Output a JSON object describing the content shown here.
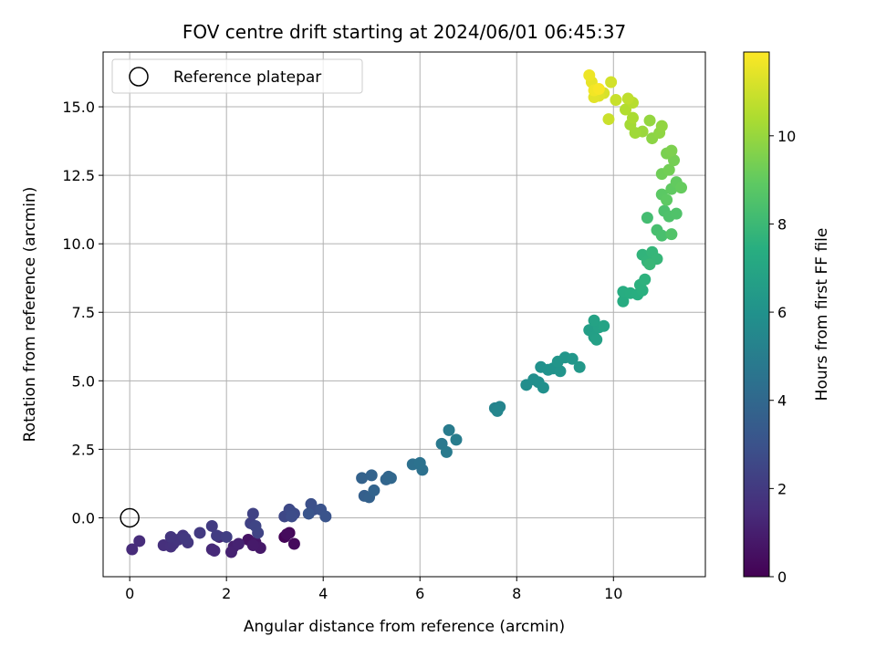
{
  "chart_data": {
    "type": "scatter",
    "title": "FOV centre drift starting at 2024/06/01 06:45:37",
    "xlabel": "Angular distance from reference (arcmin)",
    "ylabel": "Rotation from reference (arcmin)",
    "xlim": [
      -0.55,
      11.9
    ],
    "ylim": [
      -2.15,
      17.0
    ],
    "xticks": [
      0,
      2,
      4,
      6,
      8,
      10
    ],
    "yticks": [
      0.0,
      2.5,
      5.0,
      7.5,
      10.0,
      12.5,
      15.0
    ],
    "grid": true,
    "colormap": "viridis",
    "colorbar": {
      "label": "Hours from first FF file",
      "range": [
        0,
        11.9
      ],
      "ticks": [
        0,
        2,
        4,
        6,
        8,
        10
      ]
    },
    "legend": {
      "placement": "top-left",
      "entries": [
        "Reference platepar"
      ]
    },
    "reference_point": {
      "x": 0,
      "y": 0,
      "marker": "open-circle"
    },
    "series": [
      {
        "points": [
          [
            3.2,
            -0.7,
            0.1
          ],
          [
            3.3,
            -0.55,
            0.2
          ],
          [
            3.4,
            -0.95,
            0.3
          ],
          [
            3.25,
            -0.6,
            0.35
          ],
          [
            2.45,
            -0.8,
            0.6
          ],
          [
            2.6,
            -0.9,
            0.7
          ],
          [
            2.7,
            -1.1,
            0.8
          ],
          [
            2.55,
            -1.0,
            0.85
          ],
          [
            2.15,
            -1.05,
            1.0
          ],
          [
            2.1,
            -1.25,
            1.1
          ],
          [
            2.25,
            -0.95,
            1.15
          ],
          [
            1.85,
            -0.7,
            1.25
          ],
          [
            1.7,
            -1.15,
            1.35
          ],
          [
            1.75,
            -1.2,
            1.4
          ],
          [
            0.05,
            -1.15,
            1.45
          ],
          [
            0.2,
            -0.85,
            1.5
          ],
          [
            0.7,
            -1.0,
            1.6
          ],
          [
            0.85,
            -1.05,
            1.65
          ],
          [
            0.9,
            -0.95,
            1.7
          ],
          [
            1.0,
            -0.8,
            1.75
          ],
          [
            0.85,
            -0.7,
            1.8
          ],
          [
            1.1,
            -0.65,
            1.85
          ],
          [
            1.2,
            -0.9,
            1.9
          ],
          [
            1.15,
            -0.75,
            1.95
          ],
          [
            1.45,
            -0.55,
            2.0
          ],
          [
            1.7,
            -0.3,
            2.05
          ],
          [
            1.8,
            -0.65,
            2.1
          ],
          [
            2.0,
            -0.7,
            2.2
          ],
          [
            2.5,
            -0.2,
            2.3
          ],
          [
            2.55,
            0.15,
            2.35
          ],
          [
            2.65,
            -0.55,
            2.4
          ],
          [
            2.6,
            -0.3,
            2.45
          ],
          [
            3.2,
            0.05,
            2.55
          ],
          [
            3.3,
            0.3,
            2.6
          ],
          [
            3.4,
            0.15,
            2.65
          ],
          [
            3.35,
            0.2,
            2.7
          ],
          [
            3.35,
            0.05,
            2.75
          ],
          [
            3.8,
            0.3,
            2.85
          ],
          [
            3.75,
            0.5,
            2.9
          ],
          [
            3.95,
            0.3,
            3.0
          ],
          [
            4.05,
            0.05,
            3.05
          ],
          [
            3.7,
            0.15,
            3.1
          ],
          [
            4.85,
            0.8,
            3.6
          ],
          [
            4.95,
            0.75,
            3.65
          ],
          [
            4.8,
            1.45,
            3.7
          ],
          [
            5.0,
            1.55,
            3.75
          ],
          [
            5.05,
            1.0,
            3.8
          ],
          [
            5.3,
            1.4,
            3.85
          ],
          [
            5.35,
            1.5,
            3.9
          ],
          [
            5.4,
            1.45,
            3.95
          ],
          [
            5.85,
            1.95,
            4.35
          ],
          [
            6.05,
            1.75,
            4.4
          ],
          [
            6.0,
            2.0,
            4.45
          ],
          [
            6.45,
            2.7,
            4.8
          ],
          [
            6.55,
            2.4,
            4.85
          ],
          [
            6.6,
            3.2,
            4.9
          ],
          [
            6.75,
            2.85,
            4.95
          ],
          [
            7.55,
            4.0,
            5.3
          ],
          [
            7.65,
            4.05,
            5.35
          ],
          [
            7.6,
            3.9,
            5.4
          ],
          [
            8.2,
            4.85,
            5.75
          ],
          [
            8.35,
            5.05,
            5.8
          ],
          [
            8.45,
            4.95,
            5.85
          ],
          [
            8.55,
            4.75,
            5.9
          ],
          [
            8.5,
            5.5,
            5.95
          ],
          [
            8.65,
            5.4,
            6.0
          ],
          [
            8.75,
            5.45,
            6.05
          ],
          [
            8.9,
            5.35,
            6.1
          ],
          [
            8.85,
            5.7,
            6.15
          ],
          [
            9.0,
            5.85,
            6.2
          ],
          [
            9.15,
            5.8,
            6.25
          ],
          [
            9.3,
            5.5,
            6.3
          ],
          [
            9.5,
            6.85,
            6.6
          ],
          [
            9.6,
            6.6,
            6.65
          ],
          [
            9.65,
            6.5,
            6.7
          ],
          [
            9.7,
            6.95,
            6.75
          ],
          [
            9.6,
            7.2,
            6.8
          ],
          [
            9.8,
            7.0,
            6.85
          ],
          [
            10.2,
            7.9,
            7.3
          ],
          [
            10.2,
            8.25,
            7.35
          ],
          [
            10.35,
            8.2,
            7.4
          ],
          [
            10.5,
            8.15,
            7.45
          ],
          [
            10.6,
            8.3,
            7.5
          ],
          [
            10.55,
            8.5,
            7.55
          ],
          [
            10.65,
            8.7,
            7.6
          ],
          [
            10.6,
            9.6,
            7.7
          ],
          [
            10.7,
            9.35,
            7.75
          ],
          [
            10.8,
            9.7,
            7.8
          ],
          [
            10.9,
            9.45,
            7.85
          ],
          [
            10.75,
            9.25,
            7.9
          ],
          [
            10.7,
            10.95,
            8.2
          ],
          [
            10.9,
            10.5,
            8.3
          ],
          [
            11.0,
            10.3,
            8.35
          ],
          [
            11.05,
            11.2,
            8.45
          ],
          [
            11.15,
            11.0,
            8.5
          ],
          [
            11.3,
            11.1,
            8.55
          ],
          [
            11.2,
            10.35,
            8.6
          ],
          [
            11.0,
            11.8,
            8.85
          ],
          [
            11.1,
            11.6,
            8.9
          ],
          [
            11.2,
            12.0,
            8.95
          ],
          [
            11.3,
            12.25,
            9.0
          ],
          [
            11.4,
            12.05,
            9.05
          ],
          [
            11.0,
            12.55,
            9.25
          ],
          [
            11.15,
            12.7,
            9.3
          ],
          [
            11.25,
            13.05,
            9.35
          ],
          [
            11.1,
            13.3,
            9.45
          ],
          [
            11.2,
            13.4,
            9.5
          ],
          [
            10.8,
            13.85,
            9.8
          ],
          [
            10.95,
            14.05,
            9.85
          ],
          [
            11.0,
            14.3,
            9.9
          ],
          [
            10.75,
            14.5,
            9.95
          ],
          [
            10.6,
            14.1,
            10.05
          ],
          [
            10.45,
            14.05,
            10.15
          ],
          [
            10.35,
            14.35,
            10.25
          ],
          [
            10.4,
            14.6,
            10.35
          ],
          [
            10.25,
            14.9,
            10.5
          ],
          [
            10.4,
            15.15,
            10.6
          ],
          [
            10.3,
            15.3,
            10.75
          ],
          [
            10.05,
            15.25,
            10.9
          ],
          [
            9.9,
            14.55,
            10.95
          ],
          [
            9.95,
            15.9,
            11.1
          ],
          [
            9.8,
            15.5,
            11.2
          ],
          [
            9.7,
            15.4,
            11.3
          ],
          [
            9.6,
            15.35,
            11.4
          ],
          [
            9.55,
            15.9,
            11.5
          ],
          [
            9.5,
            16.15,
            11.6
          ],
          [
            9.6,
            15.6,
            11.7
          ],
          [
            9.7,
            15.65,
            11.8
          ]
        ]
      }
    ]
  }
}
